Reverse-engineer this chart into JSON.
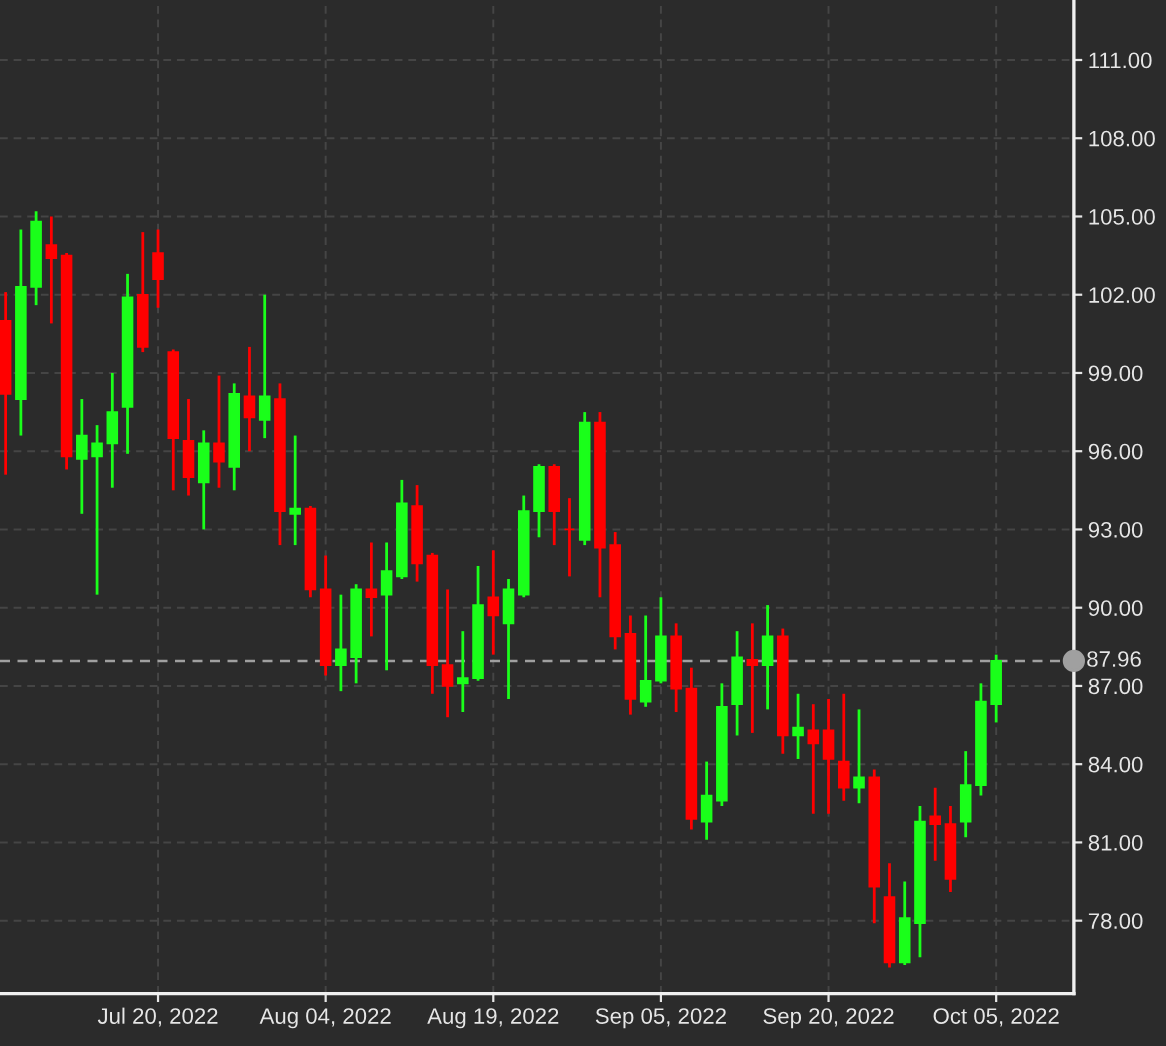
{
  "chart_data": {
    "type": "candlestick",
    "categories": [
      null,
      null,
      null,
      null,
      null,
      null,
      null,
      null,
      null,
      null,
      "Jul 20, 2022",
      null,
      null,
      null,
      null,
      null,
      null,
      null,
      null,
      null,
      null,
      "Aug 04, 2022",
      null,
      null,
      null,
      null,
      null,
      null,
      null,
      null,
      null,
      null,
      "Aug 19, 2022",
      null,
      null,
      null,
      null,
      null,
      null,
      null,
      null,
      null,
      null,
      "Sep 05, 2022",
      null,
      null,
      null,
      null,
      null,
      null,
      null,
      null,
      null,
      null,
      "Sep 20, 2022",
      null,
      null,
      null,
      null,
      null,
      null,
      null,
      null,
      null,
      null,
      "Oct 05, 2022"
    ],
    "ohlc": [
      [
        101.0,
        102.1,
        95.1,
        98.2
      ],
      [
        98.0,
        104.5,
        96.6,
        102.3
      ],
      [
        102.3,
        105.2,
        101.6,
        104.8
      ],
      [
        103.9,
        105.0,
        100.9,
        103.4
      ],
      [
        103.5,
        103.6,
        95.3,
        95.8
      ],
      [
        95.7,
        98.0,
        93.6,
        96.6
      ],
      [
        95.8,
        97.0,
        90.5,
        96.3
      ],
      [
        96.3,
        99.0,
        94.6,
        97.5
      ],
      [
        97.7,
        102.8,
        95.9,
        101.9
      ],
      [
        102.0,
        104.4,
        99.8,
        100.0
      ],
      [
        103.6,
        104.5,
        101.5,
        102.6
      ],
      [
        99.8,
        99.9,
        94.5,
        96.5
      ],
      [
        96.4,
        98.0,
        94.3,
        95.0
      ],
      [
        94.8,
        96.8,
        93.0,
        96.3
      ],
      [
        96.3,
        98.9,
        94.6,
        95.6
      ],
      [
        95.4,
        98.6,
        94.5,
        98.2
      ],
      [
        98.1,
        100.0,
        96.0,
        97.3
      ],
      [
        97.2,
        102.0,
        96.5,
        98.1
      ],
      [
        98.0,
        98.6,
        92.4,
        93.7
      ],
      [
        93.6,
        96.6,
        92.4,
        93.8
      ],
      [
        93.8,
        93.9,
        90.4,
        90.7
      ],
      [
        90.7,
        92.0,
        87.4,
        87.8
      ],
      [
        87.8,
        90.5,
        86.8,
        88.4
      ],
      [
        88.1,
        90.9,
        87.1,
        90.7
      ],
      [
        90.7,
        92.5,
        88.9,
        90.4
      ],
      [
        90.5,
        92.5,
        87.6,
        91.4
      ],
      [
        91.2,
        94.9,
        91.1,
        94.0
      ],
      [
        93.9,
        94.7,
        91.0,
        91.7
      ],
      [
        92.0,
        92.1,
        86.7,
        87.8
      ],
      [
        87.8,
        90.7,
        85.8,
        87.0
      ],
      [
        87.1,
        89.1,
        86.0,
        87.3
      ],
      [
        87.3,
        91.6,
        87.2,
        90.1
      ],
      [
        90.4,
        92.2,
        88.2,
        89.7
      ],
      [
        89.4,
        91.1,
        86.5,
        90.7
      ],
      [
        90.5,
        94.3,
        90.4,
        93.7
      ],
      [
        93.7,
        95.5,
        92.7,
        95.4
      ],
      [
        95.4,
        95.5,
        92.4,
        93.7
      ],
      [
        93.0,
        94.2,
        91.2,
        93.0
      ],
      [
        92.6,
        97.5,
        92.4,
        97.1
      ],
      [
        97.1,
        97.5,
        90.4,
        92.3
      ],
      [
        92.4,
        92.9,
        88.4,
        88.9
      ],
      [
        89.0,
        89.7,
        85.9,
        86.5
      ],
      [
        86.4,
        89.7,
        86.2,
        87.2
      ],
      [
        87.2,
        90.4,
        87.1,
        88.9
      ],
      [
        88.9,
        89.4,
        86.0,
        86.9
      ],
      [
        86.9,
        87.7,
        81.5,
        81.9
      ],
      [
        81.8,
        84.1,
        81.1,
        82.8
      ],
      [
        82.6,
        87.1,
        82.4,
        86.2
      ],
      [
        86.3,
        89.1,
        85.1,
        88.1
      ],
      [
        88.0,
        89.4,
        85.2,
        87.8
      ],
      [
        87.8,
        90.1,
        86.1,
        88.9
      ],
      [
        88.9,
        89.2,
        84.4,
        85.1
      ],
      [
        85.1,
        86.7,
        84.2,
        85.4
      ],
      [
        85.3,
        86.3,
        82.1,
        84.8
      ],
      [
        85.3,
        86.5,
        82.1,
        84.2
      ],
      [
        84.1,
        86.7,
        82.6,
        83.1
      ],
      [
        83.1,
        86.1,
        82.5,
        83.5
      ],
      [
        83.5,
        83.8,
        77.9,
        79.3
      ],
      [
        78.9,
        80.2,
        76.2,
        76.4
      ],
      [
        76.4,
        79.5,
        76.3,
        78.1
      ],
      [
        77.9,
        82.4,
        76.6,
        81.8
      ],
      [
        82.0,
        83.1,
        80.3,
        81.7
      ],
      [
        81.7,
        82.4,
        79.1,
        79.6
      ],
      [
        81.8,
        84.5,
        81.2,
        83.2
      ],
      [
        83.2,
        87.1,
        82.8,
        86.4
      ],
      [
        86.3,
        88.2,
        85.6,
        87.96
      ]
    ],
    "colors": [
      "#ff0000",
      "#1aff1a",
      "#1aff1a",
      "#ff0000",
      "#ff0000",
      "#1aff1a",
      "#1aff1a",
      "#1aff1a",
      "#1aff1a",
      "#ff0000",
      "#ff0000",
      "#ff0000",
      "#ff0000",
      "#1aff1a",
      "#ff0000",
      "#1aff1a",
      "#ff0000",
      "#1aff1a",
      "#ff0000",
      "#1aff1a",
      "#ff0000",
      "#ff0000",
      "#1aff1a",
      "#1aff1a",
      "#ff0000",
      "#1aff1a",
      "#1aff1a",
      "#ff0000",
      "#ff0000",
      "#ff0000",
      "#1aff1a",
      "#1aff1a",
      "#ff0000",
      "#1aff1a",
      "#1aff1a",
      "#1aff1a",
      "#ff0000",
      "#ff0000",
      "#1aff1a",
      "#ff0000",
      "#ff0000",
      "#ff0000",
      "#1aff1a",
      "#1aff1a",
      "#ff0000",
      "#ff0000",
      "#1aff1a",
      "#1aff1a",
      "#1aff1a",
      "#ff0000",
      "#1aff1a",
      "#ff0000",
      "#1aff1a",
      "#ff0000",
      "#ff0000",
      "#ff0000",
      "#1aff1a",
      "#ff0000",
      "#ff0000",
      "#1aff1a",
      "#1aff1a",
      "#ff0000",
      "#ff0000",
      "#1aff1a",
      "#1aff1a",
      "#1aff1a"
    ],
    "ylim": [
      75.2,
      113.3
    ],
    "yticks": [
      {
        "value": 78,
        "label": "78.00"
      },
      {
        "value": 81,
        "label": "81.00"
      },
      {
        "value": 84,
        "label": "84.00"
      },
      {
        "value": 87,
        "label": "87.00"
      },
      {
        "value": 90,
        "label": "90.00"
      },
      {
        "value": 93,
        "label": "93.00"
      },
      {
        "value": 96,
        "label": "96.00"
      },
      {
        "value": 99,
        "label": "99.00"
      },
      {
        "value": 102,
        "label": "102.00"
      },
      {
        "value": 105,
        "label": "105.00"
      },
      {
        "value": 108,
        "label": "108.00"
      },
      {
        "value": 111,
        "label": "111.00"
      }
    ],
    "ref_lines": [
      {
        "axis": "y",
        "value": 87.96,
        "label": "87.96",
        "color": "#a0a0a0",
        "line_style": "dashed"
      }
    ],
    "grid": true
  }
}
